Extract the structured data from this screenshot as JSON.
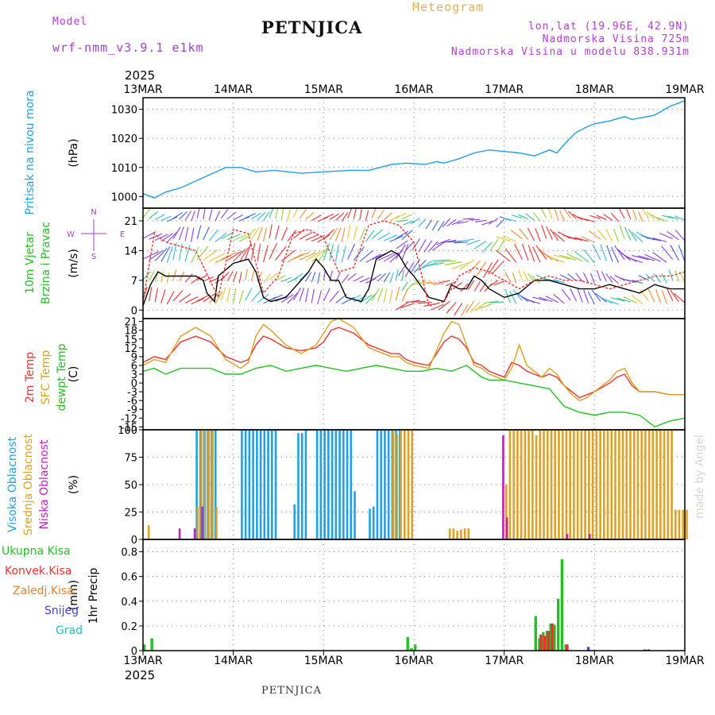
{
  "header": {
    "model_label": "Model",
    "model_name": "wrf-nmm_v3.9.1 e1km",
    "station": "PETNJICA",
    "product": "Meteogram",
    "coords": "lon,lat (19.96E, 42.9N)",
    "elevation": "Nadmorska Visina 725m",
    "model_elevation": "Nadmorska Visina u modelu 838.931m",
    "footer_station": "PETNJICA",
    "watermark": "made by Angel"
  },
  "colors": {
    "pressure": "#1e9fe6",
    "wind_speed": "#000000",
    "gust": "#ee3030",
    "temp2m": "#ee3030",
    "sfc_temp": "#d9a020",
    "dewpt": "#22c022",
    "cloud_high": "#20a0e8",
    "cloud_mid": "#e0a020",
    "cloud_low": "#c020c0",
    "precip_total": "#22c022",
    "precip_conv": "#ee3030",
    "precip_frz": "#f08020",
    "precip_snow": "#4040e0",
    "precip_hail": "#20c0c0"
  },
  "chart_data": {
    "type": "line",
    "time_axis": {
      "year": "2025",
      "ticks": [
        "13MAR",
        "14MAR",
        "15MAR",
        "16MAR",
        "17MAR",
        "18MAR",
        "19MAR"
      ],
      "hours_range": [
        0,
        144
      ]
    },
    "panels": [
      {
        "id": "pressure",
        "ylabel": "Pritisak na nivou mora",
        "unit": "(hPa)",
        "ylim": [
          996,
          1034
        ],
        "yticks": [
          1000,
          1010,
          1020,
          1030
        ],
        "series": [
          {
            "name": "Pritisak na nivou mora",
            "x": [
              0,
              3,
              6,
              10,
              16,
              22,
              26,
              30,
              35,
              42,
              48,
              55,
              60,
              66,
              70,
              75,
              78,
              80,
              84,
              88,
              92,
              96,
              100,
              104,
              108,
              110,
              112,
              115,
              118,
              120,
              124,
              128,
              130,
              132,
              136,
              140,
              144
            ],
            "values": [
              1001,
              999.5,
              1001.5,
              1003,
              1006.5,
              1010,
              1010,
              1008.5,
              1009,
              1008,
              1008.5,
              1009,
              1009,
              1011,
              1011.5,
              1011,
              1012,
              1011.5,
              1013,
              1015,
              1016,
              1015.5,
              1015,
              1014,
              1016,
              1015,
              1018,
              1022,
              1024,
              1025,
              1026,
              1027.5,
              1026.5,
              1027,
              1028,
              1031,
              1033
            ]
          }
        ]
      },
      {
        "id": "wind",
        "ylabel": "10m Vjetar Brzina i Pravac",
        "unit": "(m/s)",
        "compass": [
          "N",
          "W",
          "E",
          "S"
        ],
        "ylim": [
          -2,
          24
        ],
        "yticks": [
          0,
          7,
          14,
          21
        ],
        "series": [
          {
            "name": "10m Vjetar",
            "x": [
              0,
              2,
              4,
              6,
              10,
              14,
              16,
              17,
              18,
              19,
              20,
              24,
              28,
              30,
              32,
              34,
              38,
              40,
              44,
              46,
              48,
              50,
              52,
              54,
              58,
              60,
              62,
              66,
              68,
              70,
              72,
              76,
              80,
              82,
              84,
              86,
              88,
              90,
              92,
              96,
              100,
              104,
              108,
              112,
              116,
              120,
              124,
              128,
              132,
              136,
              140,
              144
            ],
            "values": [
              1,
              6,
              9,
              8,
              8,
              8,
              7,
              4,
              3,
              2,
              8,
              11,
              12,
              9,
              3,
              2,
              3,
              5,
              9,
              12,
              10,
              7,
              7,
              3,
              2,
              5,
              12,
              14,
              13,
              10,
              8,
              3,
              2,
              6,
              5,
              5,
              8,
              7,
              5,
              3,
              4,
              7,
              7,
              6,
              5,
              5,
              6,
              5,
              4,
              6,
              5,
              5
            ]
          },
          {
            "name": "10m Udar",
            "x": [
              0,
              3,
              6,
              10,
              14,
              20,
              24,
              28,
              32,
              36,
              40,
              44,
              48,
              52,
              56,
              60,
              64,
              68,
              72,
              76,
              80,
              84,
              88,
              92,
              96,
              100,
              104,
              108,
              112,
              116,
              120,
              124,
              128,
              132,
              136,
              140,
              144
            ],
            "values": [
              2,
              18,
              16,
              15,
              14,
              3,
              19,
              18,
              4,
              8,
              18,
              19,
              17,
              9,
              10,
              20,
              21,
              20,
              16,
              1,
              2,
              8,
              10,
              9,
              7,
              5,
              7,
              8,
              7,
              7,
              6,
              5,
              6,
              7,
              8,
              8,
              9
            ]
          }
        ]
      },
      {
        "id": "temperature",
        "ylabel": "2m Temp / SFC Temp / dewpt Temp",
        "unit": "(C)",
        "ylim": [
          -16,
          22
        ],
        "yticks": [
          21,
          18,
          15,
          12,
          9,
          6,
          3,
          0,
          -3,
          -6,
          -9,
          -12,
          -15
        ],
        "series": [
          {
            "name": "2m Temp",
            "x": [
              0,
              3,
              6,
              10,
              14,
              18,
              22,
              26,
              28,
              30,
              32,
              34,
              38,
              42,
              46,
              48,
              50,
              52,
              56,
              60,
              64,
              66,
              68,
              70,
              72,
              76,
              80,
              82,
              84,
              86,
              88,
              90,
              92,
              96,
              98,
              100,
              102,
              104,
              106,
              108,
              110,
              112,
              114,
              116,
              118,
              120,
              124,
              126,
              128,
              130,
              132,
              136,
              140,
              144
            ],
            "values": [
              7,
              9,
              8,
              14,
              16,
              14,
              9,
              7,
              8,
              13,
              16,
              15,
              12,
              11,
              12,
              14,
              18,
              19,
              17,
              13,
              11,
              10,
              10,
              8,
              7,
              6,
              14,
              16,
              15,
              12,
              7,
              6,
              4,
              2,
              7,
              6,
              4,
              3,
              2,
              3,
              2,
              -1,
              -3,
              -5,
              -4,
              -3,
              0,
              2,
              3,
              -1,
              -3,
              -3,
              -4,
              -4
            ]
          },
          {
            "name": "SFC Temp",
            "x": [
              0,
              3,
              6,
              10,
              14,
              18,
              22,
              26,
              28,
              30,
              32,
              34,
              38,
              42,
              46,
              48,
              50,
              52,
              56,
              60,
              64,
              66,
              68,
              70,
              72,
              76,
              80,
              82,
              84,
              86,
              88,
              90,
              92,
              96,
              98,
              100,
              102,
              104,
              106,
              108,
              110,
              112,
              114,
              116,
              118,
              120,
              124,
              126,
              128,
              130,
              132,
              136,
              140,
              144
            ],
            "values": [
              6,
              8,
              7,
              16,
              19,
              16,
              8,
              5,
              7,
              16,
              20,
              18,
              13,
              10,
              13,
              17,
              21,
              22,
              19,
              12,
              10,
              9,
              9,
              7,
              6,
              5,
              17,
              21,
              20,
              13,
              6,
              5,
              3,
              1,
              5,
              13,
              6,
              4,
              2,
              5,
              3,
              -1,
              -4,
              -6,
              -5,
              -3,
              1,
              4,
              5,
              0,
              -3,
              -3,
              -4,
              -4
            ]
          },
          {
            "name": "dewpt Temp",
            "x": [
              0,
              3,
              6,
              10,
              14,
              18,
              22,
              26,
              30,
              34,
              38,
              42,
              46,
              50,
              54,
              58,
              62,
              66,
              70,
              74,
              78,
              82,
              86,
              88,
              90,
              92,
              96,
              100,
              104,
              108,
              110,
              112,
              116,
              120,
              124,
              128,
              132,
              136,
              140,
              144
            ],
            "values": [
              4,
              5,
              3,
              5,
              5,
              5,
              3,
              3,
              5,
              6,
              4,
              5,
              6,
              5,
              4,
              5,
              6,
              5,
              4,
              4,
              5,
              4,
              6,
              4,
              2,
              1,
              1,
              0,
              -1,
              -2,
              -5,
              -8,
              -10,
              -11,
              -10,
              -10,
              -11,
              -15,
              -13,
              -12
            ]
          }
        ]
      },
      {
        "id": "cloud",
        "ylabel": "Visoka Oblacnost / Srednja Oblacnost / Niska Oblacnost",
        "unit": "(%)",
        "ylim": [
          0,
          100
        ],
        "yticks": [
          0,
          25,
          50,
          75,
          100
        ],
        "series": [
          {
            "name": "Visoka Oblacnost",
            "x": [
              14,
              15,
              16,
              17,
              18,
              19,
              26,
              27,
              28,
              29,
              30,
              31,
              32,
              33,
              34,
              35,
              40,
              41,
              42,
              43,
              46,
              47,
              48,
              49,
              50,
              51,
              52,
              53,
              54,
              55,
              56,
              60,
              61,
              62,
              63,
              64,
              65,
              66,
              67,
              68
            ],
            "values": [
              100,
              100,
              100,
              100,
              100,
              100,
              100,
              100,
              100,
              100,
              100,
              100,
              100,
              100,
              100,
              100,
              32,
              97,
              97,
              100,
              100,
              100,
              100,
              100,
              100,
              100,
              100,
              100,
              100,
              100,
              44,
              28,
              30,
              100,
              100,
              100,
              100,
              100,
              100,
              100
            ]
          },
          {
            "name": "Srednja Oblacnost",
            "x": [
              1,
              14,
              15,
              16,
              17,
              18,
              19,
              66,
              67,
              68,
              69,
              70,
              71,
              81,
              82,
              83,
              84,
              85,
              86,
              96,
              97,
              98,
              99,
              100,
              101,
              102,
              103,
              104,
              105,
              106,
              107,
              108,
              109,
              110,
              111,
              112,
              113,
              114,
              115,
              116,
              117,
              118,
              119,
              120,
              121,
              122,
              123,
              124,
              125,
              126,
              127,
              128,
              129,
              130,
              131,
              132,
              133,
              134,
              135,
              136,
              137,
              138,
              139,
              140,
              141,
              142,
              143,
              144
            ],
            "values": [
              13,
              30,
              100,
              100,
              100,
              100,
              30,
              100,
              96,
              100,
              100,
              100,
              100,
              10,
              10,
              8,
              9,
              10,
              10,
              50,
              100,
              100,
              100,
              100,
              100,
              100,
              100,
              95,
              100,
              100,
              100,
              100,
              100,
              100,
              100,
              100,
              100,
              100,
              100,
              100,
              100,
              100,
              100,
              100,
              100,
              100,
              100,
              100,
              100,
              100,
              100,
              100,
              100,
              100,
              100,
              100,
              100,
              100,
              100,
              100,
              100,
              100,
              100,
              100,
              27,
              27,
              27,
              27
            ]
          },
          {
            "name": "Niska Oblacnost",
            "x": [
              9,
              13,
              15,
              95,
              96,
              112,
              118
            ],
            "values": [
              10,
              10,
              30,
              95,
              20,
              5,
              5
            ]
          }
        ]
      },
      {
        "id": "precip",
        "ylabel": "1hr Precip",
        "unit": "(mm)",
        "ylim": [
          0,
          0.9
        ],
        "yticks": [
          0,
          0.2,
          0.4,
          0.6,
          0.8
        ],
        "legend": [
          "Ukupna Kisa",
          "Konvek.Kisa",
          "Zaledj.Kisa",
          "Snijeg",
          "Grad"
        ],
        "series": [
          {
            "name": "Ukupna Kisa",
            "x": [
              0,
              2,
              70,
              71,
              72,
              104,
              105,
              106,
              107,
              108,
              109,
              110,
              111,
              112
            ],
            "values": [
              0.05,
              0.1,
              0.11,
              0.02,
              0.05,
              0.28,
              0.1,
              0.15,
              0.16,
              0.22,
              0.21,
              0.42,
              0.74,
              0.05
            ]
          },
          {
            "name": "Konvek.Kisa",
            "x": [
              105,
              106,
              107,
              108,
              112
            ],
            "values": [
              0.13,
              0.12,
              0.16,
              0.22,
              0.05
            ]
          },
          {
            "name": "Zaledj.Kisa",
            "x": [],
            "values": []
          },
          {
            "name": "Snijeg",
            "x": [
              118,
              133,
              134
            ],
            "values": [
              0.03,
              0.01,
              0.01
            ]
          },
          {
            "name": "Grad",
            "x": [],
            "values": []
          }
        ]
      }
    ]
  }
}
